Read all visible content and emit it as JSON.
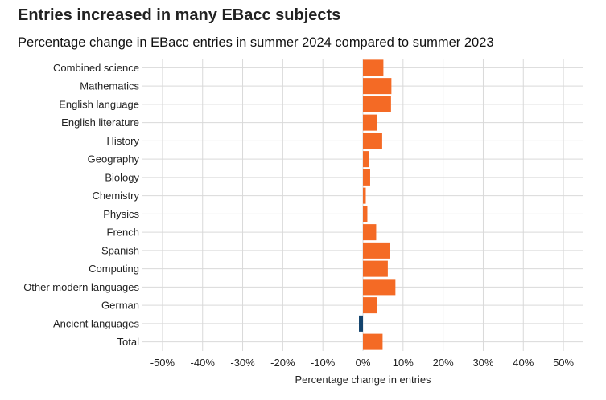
{
  "chart_data": {
    "type": "bar",
    "orientation": "horizontal",
    "title": "Entries increased in many EBacc subjects",
    "subtitle": "Percentage change in EBacc entries in summer 2024 compared to summer 2023",
    "xlabel": "Percentage change in entries",
    "ylabel": "",
    "xlim": [
      -55,
      55
    ],
    "xticks": [
      -50,
      -40,
      -30,
      -20,
      -10,
      0,
      10,
      20,
      30,
      40,
      50
    ],
    "xtick_labels": [
      "-50%",
      "-40%",
      "-30%",
      "-20%",
      "-10%",
      "0%",
      "10%",
      "20%",
      "30%",
      "40%",
      "50%"
    ],
    "categories": [
      "Combined science",
      "Mathematics",
      "English language",
      "English literature",
      "History",
      "Geography",
      "Biology",
      "Chemistry",
      "Physics",
      "French",
      "Spanish",
      "Computing",
      "Other modern languages",
      "German",
      "Ancient languages",
      "Total"
    ],
    "values": [
      5.1,
      7.1,
      7.0,
      3.6,
      4.8,
      1.6,
      1.8,
      0.7,
      1.1,
      3.3,
      6.8,
      6.2,
      8.1,
      3.5,
      -1.0,
      4.9
    ],
    "colors": {
      "positive": "#f46a25",
      "negative": "#12436d"
    },
    "grid": true,
    "legend": "none"
  }
}
